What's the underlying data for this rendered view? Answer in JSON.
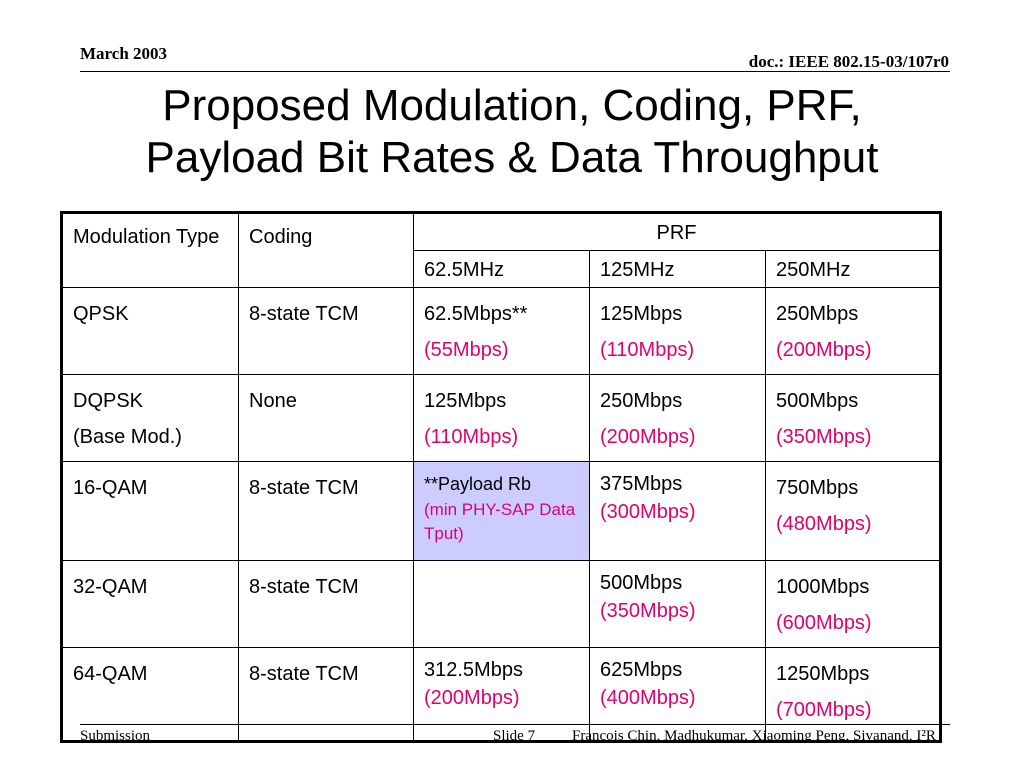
{
  "header": {
    "date": "March 2003",
    "doc_id": "doc.: IEEE 802.15-03/107r0"
  },
  "title": {
    "line1": "Proposed Modulation, Coding, PRF,",
    "line2": "Payload Bit Rates & Data Throughput"
  },
  "table": {
    "head": {
      "modulation": "Modulation Type",
      "coding": "Coding",
      "prf": "PRF",
      "prf_cols": [
        "62.5MHz",
        "125MHz",
        "250MHz"
      ]
    },
    "rows": [
      {
        "mod": "QPSK",
        "mod2": "",
        "coding": "8-state TCM",
        "c1": "62.5Mbps**",
        "c1r": "(55Mbps)",
        "c2": "125Mbps",
        "c2r": "(110Mbps)",
        "c3": "250Mbps",
        "c3r": "(200Mbps)"
      },
      {
        "mod": "DQPSK",
        "mod2": "(Base Mod.)",
        "coding": "None",
        "c1": "125Mbps",
        "c1r": "(110Mbps)",
        "c2": "250Mbps",
        "c2r": "(200Mbps)",
        "c3": "500Mbps",
        "c3r": "(350Mbps)"
      },
      {
        "mod": "16-QAM",
        "mod2": "",
        "coding": "8-state TCM",
        "c1": "**Payload Rb",
        "c1r": "(min PHY-SAP Data Tput)",
        "c2": "375Mbps",
        "c2r": "(300Mbps)",
        "c3": "750Mbps",
        "c3r": "(480Mbps)"
      },
      {
        "mod": "32-QAM",
        "mod2": "",
        "coding": "8-state TCM",
        "c1": "",
        "c1r": "",
        "c2": "500Mbps",
        "c2r": "(350Mbps)",
        "c3": "1000Mbps",
        "c3r": "(600Mbps)"
      },
      {
        "mod": "64-QAM",
        "mod2": "",
        "coding": "8-state TCM",
        "c1": "312.5Mbps",
        "c1r": "(200Mbps)",
        "c2": "625Mbps",
        "c2r": "(400Mbps)",
        "c3": "1250Mbps",
        "c3r": "(700Mbps)"
      }
    ],
    "colors": {
      "throughput_red": "#e0006e",
      "highlight": "#ccccff"
    }
  },
  "footer": {
    "left": "Submission",
    "slide": "Slide 7",
    "authors": "Francois Chin, Madhukumar, Xiaoming Peng, Sivanand, I²R"
  }
}
